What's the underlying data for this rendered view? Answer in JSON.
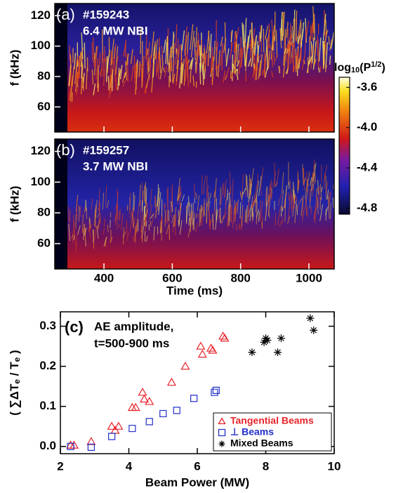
{
  "chart_data": [
    {
      "type": "spectrogram",
      "panel_label": "(a)",
      "shot": "#159243",
      "power": "6.4 MW NBI",
      "y_label": "f (kHz)",
      "xlim": [
        256,
        1074
      ],
      "ylim": [
        43.5,
        128
      ],
      "xticks": [
        400,
        600,
        800,
        1000
      ],
      "yticks": [
        60,
        80,
        100,
        120
      ],
      "show_xtick_labels": false
    },
    {
      "type": "spectrogram",
      "panel_label": "(b)",
      "shot": "#159257",
      "power": "3.7 MW NBI",
      "y_label": "f (kHz)",
      "x_label": "Time (ms)",
      "xlim": [
        256,
        1074
      ],
      "ylim": [
        43.5,
        128
      ],
      "xticks": [
        400,
        600,
        800,
        1000
      ],
      "yticks": [
        60,
        80,
        100,
        120
      ],
      "show_xtick_labels": true
    },
    {
      "type": "colorbar",
      "label_parts": [
        "log",
        "10",
        "(P",
        "1/2",
        ")"
      ],
      "lim": [
        -4.86,
        -3.5
      ],
      "ticks": [
        -3.6,
        {
          "value": -4.0,
          "label": "-4.0"
        },
        -4.4,
        -4.8
      ]
    },
    {
      "type": "scatter",
      "panel_label": "(c)",
      "annotation": [
        "AE amplitude,",
        "t=500-900 ms"
      ],
      "x_label": "Beam Power (MW)",
      "y_label_parts": [
        "( ∑ΔT",
        "e",
        " / T",
        "e",
        " )"
      ],
      "xlim": [
        2,
        10
      ],
      "ylim": [
        -0.018,
        0.336
      ],
      "xticks": [
        2,
        4,
        6,
        8,
        10
      ],
      "yticks": [
        {
          "value": 0,
          "label": "0.0"
        },
        0.1,
        0.2,
        0.3
      ],
      "legend": "lower right",
      "series": [
        {
          "name": "Tangential Beams",
          "color": "#e8242a",
          "marker": "triangle",
          "x": [
            2.3,
            2.4,
            2.9,
            3.5,
            3.6,
            3.7,
            4.1,
            4.2,
            4.4,
            4.45,
            4.6,
            5.25,
            5.65,
            6.1,
            6.15,
            6.4,
            6.45,
            6.75,
            6.8
          ],
          "values": [
            0.003,
            0.003,
            0.012,
            0.05,
            0.04,
            0.05,
            0.097,
            0.097,
            0.135,
            0.118,
            0.112,
            0.16,
            0.2,
            0.25,
            0.23,
            0.245,
            0.24,
            0.275,
            0.27
          ]
        },
        {
          "name": "⊥ Beams",
          "color": "#2430c8",
          "marker": "square",
          "x": [
            2.3,
            2.9,
            3.5,
            4.1,
            4.6,
            5.0,
            5.4,
            5.9,
            6.5,
            6.55
          ],
          "values": [
            0.0,
            -0.002,
            0.025,
            0.045,
            0.062,
            0.082,
            0.09,
            0.12,
            0.135,
            0.14
          ]
        },
        {
          "name": "Mixed Beams",
          "color": "#000000",
          "marker": "star",
          "x": [
            7.6,
            7.95,
            8.0,
            8.05,
            8.35,
            8.45,
            9.3,
            9.4
          ],
          "values": [
            0.235,
            0.26,
            0.27,
            0.265,
            0.235,
            0.27,
            0.32,
            0.29
          ]
        }
      ]
    }
  ]
}
